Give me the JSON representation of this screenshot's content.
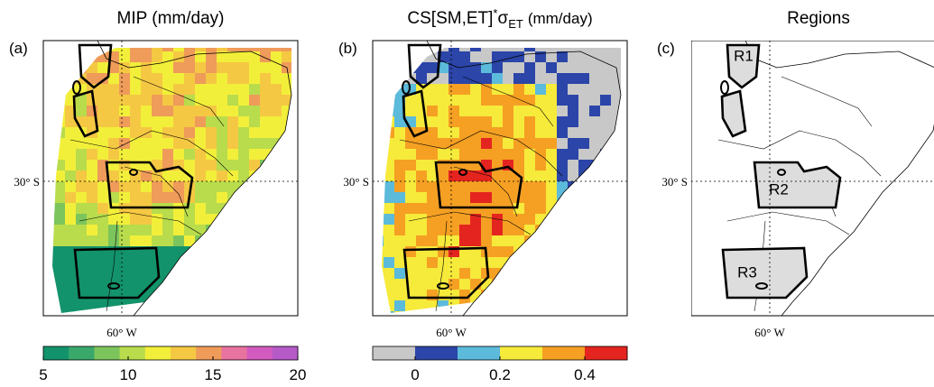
{
  "panels": [
    {
      "label": "(a)",
      "title": {
        "main": "MIP (mm/day)"
      },
      "lat_label": "30° S",
      "lon_label": "60° W",
      "colorbar": {
        "colors": [
          "#13936b",
          "#3aa86a",
          "#7cc45c",
          "#b8dc4c",
          "#f2ef3a",
          "#f5c843",
          "#ef9b5a",
          "#e872a0",
          "#d35bbf",
          "#b65ac7"
        ],
        "lim": [
          5,
          20
        ],
        "ticks": [
          5,
          10,
          15,
          20
        ]
      }
    },
    {
      "label": "(b)",
      "title": {
        "main": "CS[SM,ET]",
        "sup": "*",
        "sym": "σ",
        "sub": "ET",
        "unit": "(mm/day)"
      },
      "lat_label": "30° S",
      "lon_label": "60° W",
      "colorbar": {
        "colors": [
          "#c8c8c8",
          "#2b45a8",
          "#5cbadb",
          "#f6ea3b",
          "#f5a023",
          "#e4241f"
        ],
        "lim": [
          -0.1,
          0.5
        ],
        "ticks": [
          0,
          0.2,
          0.4
        ]
      }
    },
    {
      "label": "(c)",
      "title": {
        "main": "Regions"
      },
      "lat_label": "30° S",
      "lon_label": "60° W",
      "regions": [
        "R1",
        "R2",
        "R3"
      ]
    }
  ]
}
